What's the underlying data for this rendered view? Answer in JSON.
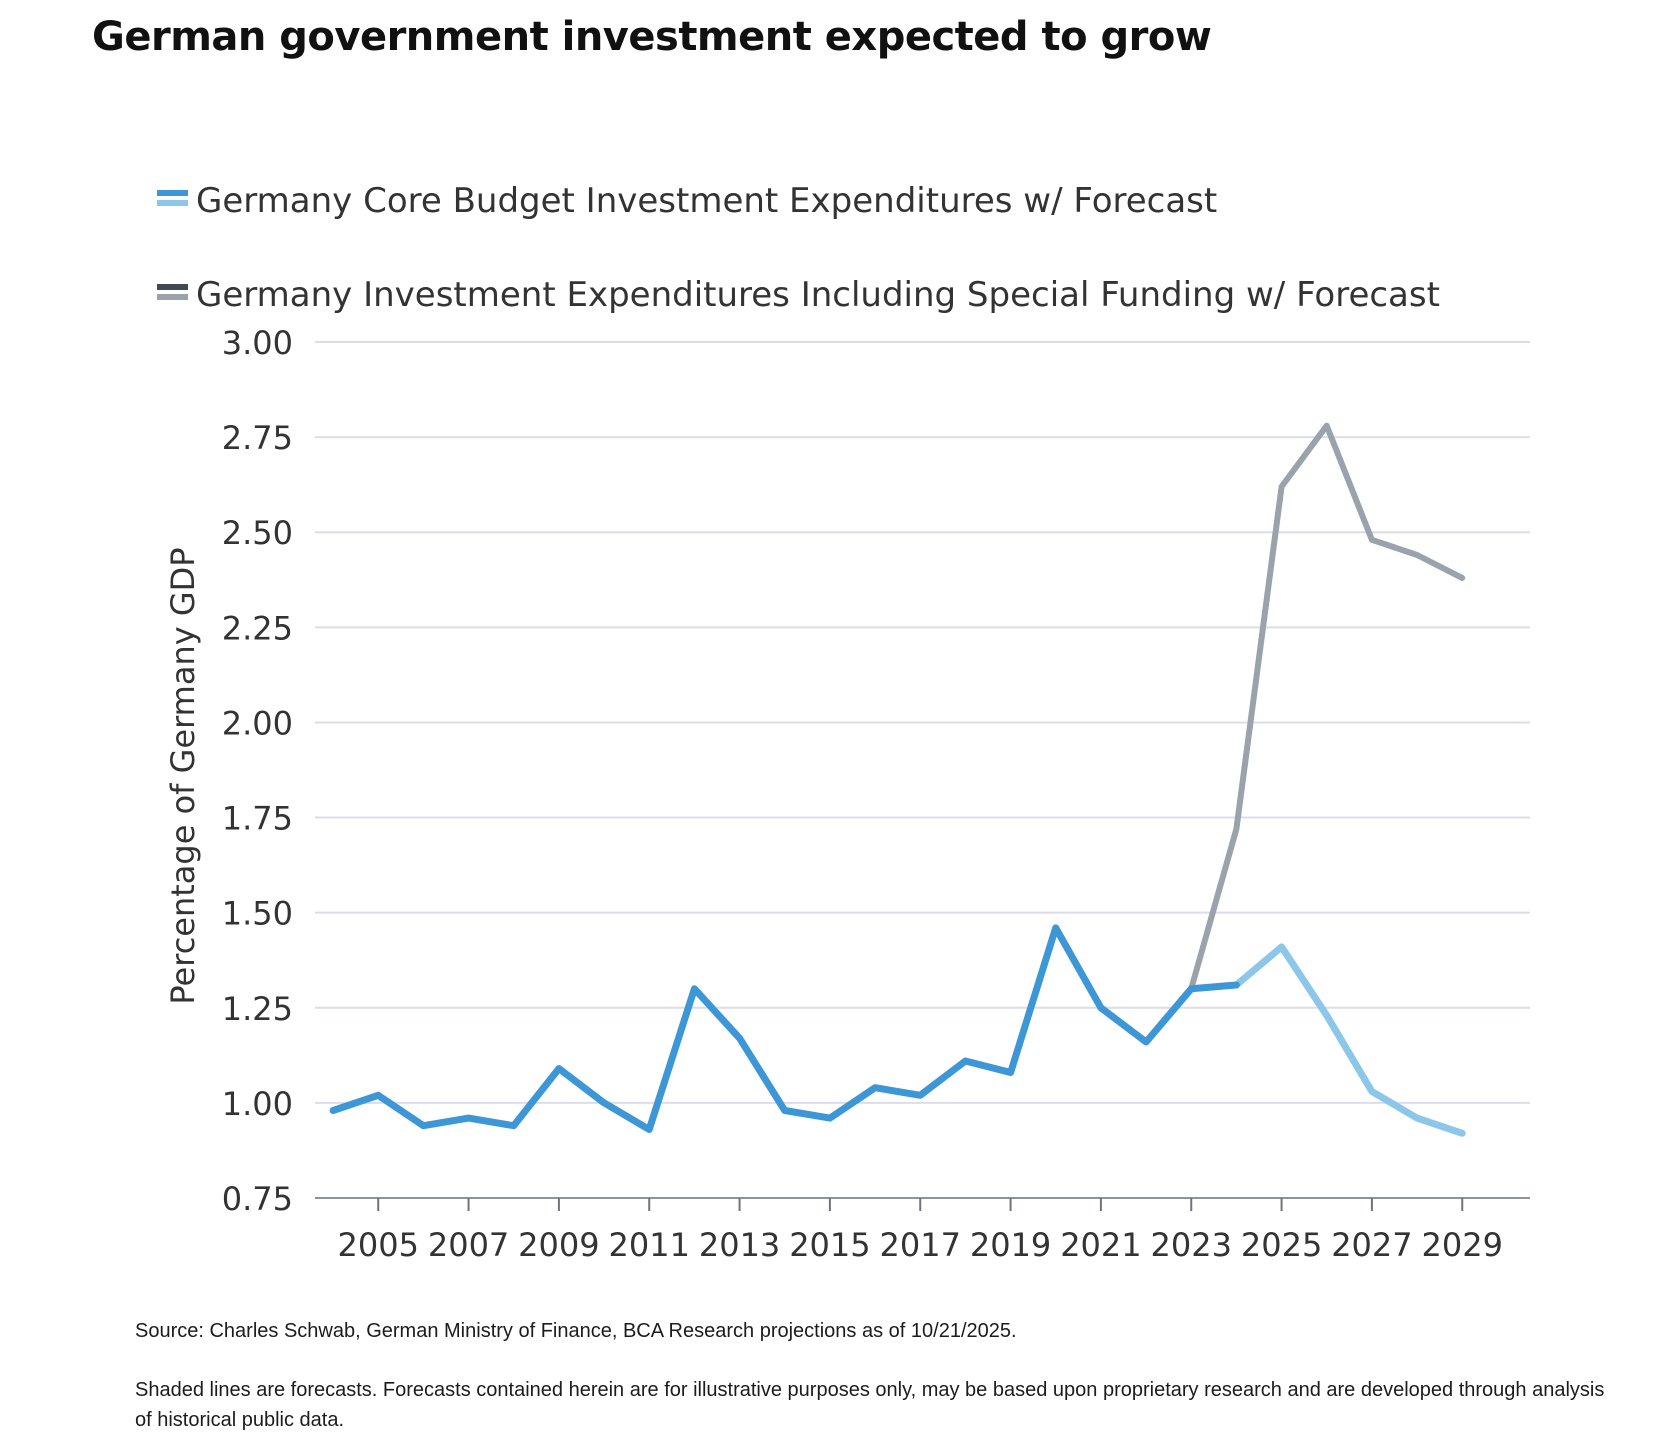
{
  "title": "German government investment expected to grow",
  "footnotes": {
    "source": "Source: Charles Schwab, German Ministry of Finance, BCA Research projections as of 10/21/2025.",
    "note": "Shaded lines are forecasts. Forecasts contained herein are for illustrative purposes only, may be based upon proprietary research and are developed through analysis of historical public data."
  },
  "chart_data": {
    "type": "line",
    "title": "German government investment expected to grow",
    "xlabel": "",
    "ylabel": "Percentage of Germany GDP",
    "ylim": [
      0.75,
      3.0
    ],
    "xlim": [
      2003.6,
      2030.5
    ],
    "grid": true,
    "legend_position": "top-left",
    "y_ticks": [
      "0.75",
      "1.00",
      "1.25",
      "1.50",
      "1.75",
      "2.00",
      "2.25",
      "2.50",
      "2.75",
      "3.00"
    ],
    "x_ticks": [
      "2005",
      "2007",
      "2009",
      "2011",
      "2013",
      "2015",
      "2017",
      "2019",
      "2021",
      "2023",
      "2025",
      "2027",
      "2029"
    ],
    "series": [
      {
        "name": "Germany Core Budget Investment Expenditures w/ Forecast",
        "color": "#3d97d6",
        "forecast_color": "#8cc7ea",
        "forecast_from": 2024,
        "x": [
          2004,
          2005,
          2006,
          2007,
          2008,
          2009,
          2010,
          2011,
          2012,
          2013,
          2014,
          2015,
          2016,
          2017,
          2018,
          2019,
          2020,
          2021,
          2022,
          2023,
          2024,
          2025,
          2026,
          2027,
          2028,
          2029
        ],
        "y": [
          0.98,
          1.02,
          0.94,
          0.96,
          0.94,
          1.09,
          1.0,
          0.93,
          1.3,
          1.17,
          0.98,
          0.96,
          1.04,
          1.02,
          1.11,
          1.08,
          1.46,
          1.25,
          1.16,
          1.3,
          1.31,
          1.41,
          1.23,
          1.03,
          0.96,
          0.92
        ]
      },
      {
        "name": "Germany Investment Expenditures Including Special Funding w/ Forecast",
        "color": "#9aa3ab",
        "x": [
          2023,
          2024,
          2025,
          2026,
          2027,
          2028,
          2029
        ],
        "y": [
          1.3,
          1.72,
          2.62,
          2.78,
          2.48,
          2.44,
          2.38
        ]
      }
    ]
  }
}
